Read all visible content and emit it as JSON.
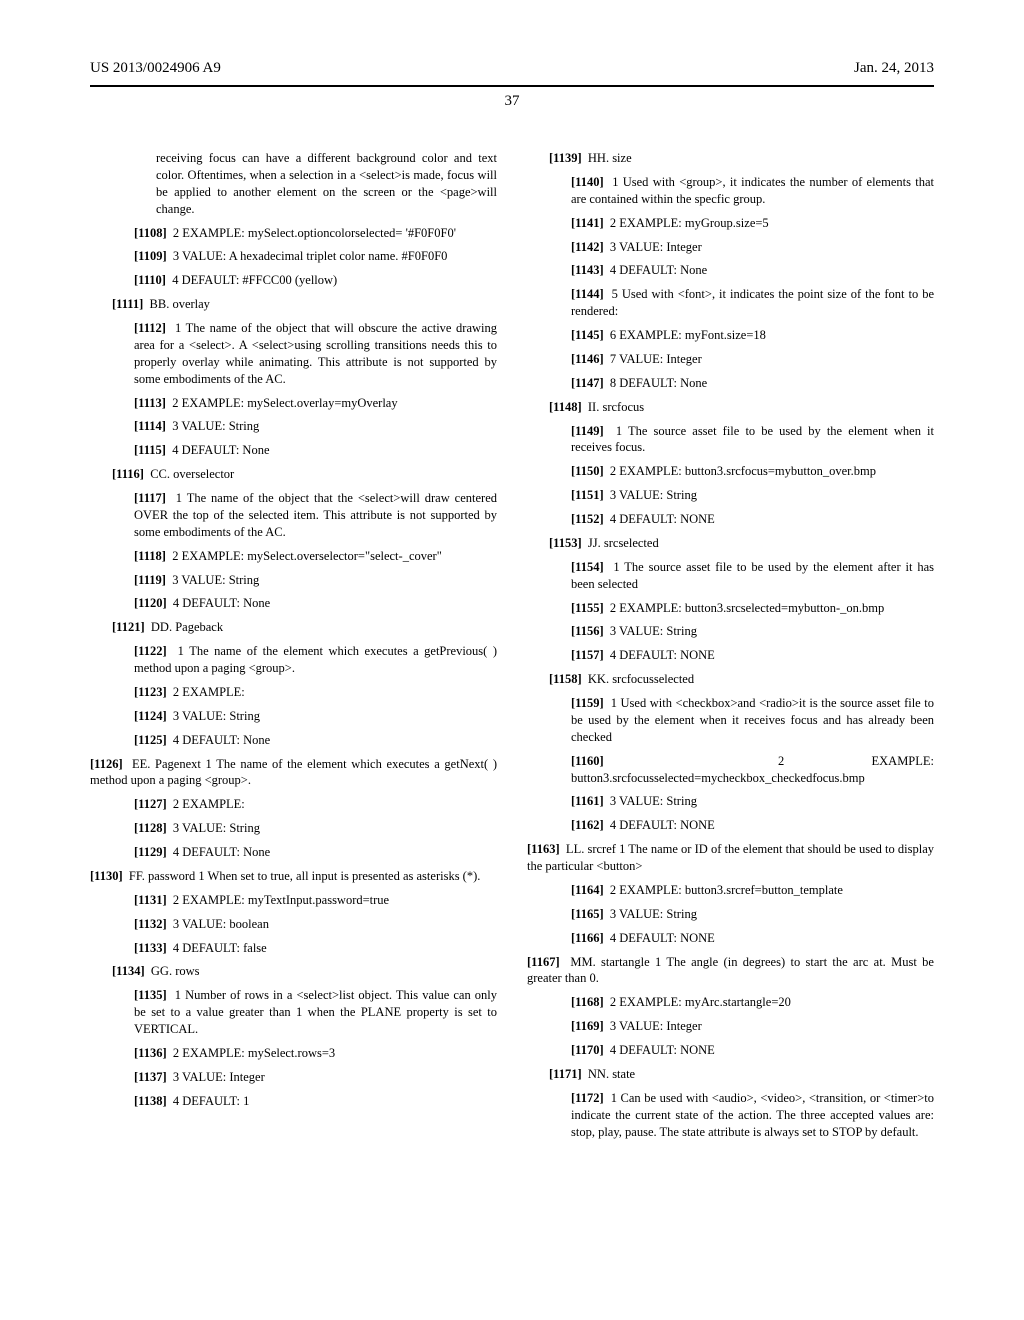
{
  "header": {
    "left": "US 2013/0024906 A9",
    "right": "Jan. 24, 2013"
  },
  "pageNumber": "37",
  "leftColumn": [
    {
      "indent": 3,
      "text": "receiving focus can have a different background color and text color. Oftentimes, when a selection in a <select>is made, focus will be applied to another element on the screen or the <page>will change."
    },
    {
      "indent": 2,
      "num": "[1108]",
      "text": "2 EXAMPLE: mySelect.optioncolorselected= '#F0F0F0'"
    },
    {
      "indent": 2,
      "num": "[1109]",
      "text": "3 VALUE: A hexadecimal triplet color name. #F0F0F0"
    },
    {
      "indent": 2,
      "num": "[1110]",
      "text": "4 DEFAULT: #FFCC00 (yellow)"
    },
    {
      "indent": 1,
      "num": "[1111]",
      "text": "BB. overlay"
    },
    {
      "indent": 2,
      "num": "[1112]",
      "text": "1 The name of the object that will obscure the active drawing area for a <select>. A <select>using scrolling transitions needs this to properly overlay while animating. This attribute is not supported by some embodiments of the AC."
    },
    {
      "indent": 2,
      "num": "[1113]",
      "text": "2 EXAMPLE: mySelect.overlay=myOverlay"
    },
    {
      "indent": 2,
      "num": "[1114]",
      "text": "3 VALUE: String"
    },
    {
      "indent": 2,
      "num": "[1115]",
      "text": "4 DEFAULT: None"
    },
    {
      "indent": 1,
      "num": "[1116]",
      "text": "CC. overselector"
    },
    {
      "indent": 2,
      "num": "[1117]",
      "text": "1 The name of the object that the <select>will draw centered OVER the top of the selected item. This attribute is not supported by some embodiments of the AC."
    },
    {
      "indent": 2,
      "num": "[1118]",
      "text": "2 EXAMPLE: mySelect.overselector=\"select-_cover\""
    },
    {
      "indent": 2,
      "num": "[1119]",
      "text": "3 VALUE: String"
    },
    {
      "indent": 2,
      "num": "[1120]",
      "text": "4 DEFAULT: None"
    },
    {
      "indent": 1,
      "num": "[1121]",
      "text": "DD. Pageback"
    },
    {
      "indent": 2,
      "num": "[1122]",
      "text": "1 The name of the element which executes a getPrevious( ) method upon a paging <group>."
    },
    {
      "indent": 2,
      "num": "[1123]",
      "text": "2 EXAMPLE:"
    },
    {
      "indent": 2,
      "num": "[1124]",
      "text": "3 VALUE: String"
    },
    {
      "indent": 2,
      "num": "[1125]",
      "text": "4 DEFAULT: None"
    },
    {
      "indent": 0,
      "num": "[1126]",
      "text": "EE. Pagenext 1 The name of the element which executes a getNext( ) method upon a paging <group>."
    },
    {
      "indent": 2,
      "num": "[1127]",
      "text": "2 EXAMPLE:"
    },
    {
      "indent": 2,
      "num": "[1128]",
      "text": "3 VALUE: String"
    },
    {
      "indent": 2,
      "num": "[1129]",
      "text": "4 DEFAULT: None"
    },
    {
      "indent": 0,
      "num": "[1130]",
      "text": "FF. password 1 When set to true, all input is presented as asterisks (*)."
    },
    {
      "indent": 2,
      "num": "[1131]",
      "text": "2 EXAMPLE: myTextInput.password=true"
    },
    {
      "indent": 2,
      "num": "[1132]",
      "text": "3 VALUE: boolean"
    },
    {
      "indent": 2,
      "num": "[1133]",
      "text": "4 DEFAULT: false"
    },
    {
      "indent": 1,
      "num": "[1134]",
      "text": "GG. rows"
    },
    {
      "indent": 2,
      "num": "[1135]",
      "text": "1 Number of rows in a <select>list object. This value can only be set to a value greater than 1 when the PLANE property is set to VERTICAL."
    },
    {
      "indent": 2,
      "num": "[1136]",
      "text": "2 EXAMPLE: mySelect.rows=3"
    },
    {
      "indent": 2,
      "num": "[1137]",
      "text": "3 VALUE: Integer"
    },
    {
      "indent": 2,
      "num": "[1138]",
      "text": "4 DEFAULT: 1"
    }
  ],
  "rightColumn": [
    {
      "indent": 1,
      "num": "[1139]",
      "text": "HH. size"
    },
    {
      "indent": 2,
      "num": "[1140]",
      "text": "1 Used with <group>, it indicates the number of elements that are contained within the specfic group."
    },
    {
      "indent": 2,
      "num": "[1141]",
      "text": "2 EXAMPLE: myGroup.size=5"
    },
    {
      "indent": 2,
      "num": "[1142]",
      "text": "3 VALUE: Integer"
    },
    {
      "indent": 2,
      "num": "[1143]",
      "text": "4 DEFAULT: None"
    },
    {
      "indent": 2,
      "num": "[1144]",
      "text": "5 Used with <font>, it indicates the point size of the font to be rendered:"
    },
    {
      "indent": 2,
      "num": "[1145]",
      "text": "6 EXAMPLE: myFont.size=18"
    },
    {
      "indent": 2,
      "num": "[1146]",
      "text": "7 VALUE: Integer"
    },
    {
      "indent": 2,
      "num": "[1147]",
      "text": "8 DEFAULT: None"
    },
    {
      "indent": 1,
      "num": "[1148]",
      "text": "II. srcfocus"
    },
    {
      "indent": 2,
      "num": "[1149]",
      "text": "1 The source asset file to be used by the element when it receives focus."
    },
    {
      "indent": 2,
      "num": "[1150]",
      "text": "2 EXAMPLE: button3.srcfocus=mybutton_over.bmp"
    },
    {
      "indent": 2,
      "num": "[1151]",
      "text": "3 VALUE: String"
    },
    {
      "indent": 2,
      "num": "[1152]",
      "text": "4 DEFAULT: NONE"
    },
    {
      "indent": 1,
      "num": "[1153]",
      "text": "JJ. srcselected"
    },
    {
      "indent": 2,
      "num": "[1154]",
      "text": "1 The source asset file to be used by the element after it has been selected"
    },
    {
      "indent": 2,
      "num": "[1155]",
      "text": "2 EXAMPLE: button3.srcselected=mybutton-_on.bmp"
    },
    {
      "indent": 2,
      "num": "[1156]",
      "text": "3 VALUE: String"
    },
    {
      "indent": 2,
      "num": "[1157]",
      "text": "4 DEFAULT: NONE"
    },
    {
      "indent": 1,
      "num": "[1158]",
      "text": "KK. srcfocusselected"
    },
    {
      "indent": 2,
      "num": "[1159]",
      "text": "1 Used with <checkbox>and <radio>it is the source asset file to be used by the element when it receives focus and has already been checked"
    },
    {
      "indent": 2,
      "num": "[1160]",
      "text": "2 EXAMPLE: button3.srcfocusselected=mycheckbox_checkedfocus.bmp"
    },
    {
      "indent": 2,
      "num": "[1161]",
      "text": "3 VALUE: String"
    },
    {
      "indent": 2,
      "num": "[1162]",
      "text": "4 DEFAULT: NONE"
    },
    {
      "indent": 0,
      "num": "[1163]",
      "text": "LL. srcref 1 The name or ID of the element that should be used to display the particular <button>"
    },
    {
      "indent": 2,
      "num": "[1164]",
      "text": "2 EXAMPLE: button3.srcref=button_template"
    },
    {
      "indent": 2,
      "num": "[1165]",
      "text": "3 VALUE: String"
    },
    {
      "indent": 2,
      "num": "[1166]",
      "text": "4 DEFAULT: NONE"
    },
    {
      "indent": 0,
      "num": "[1167]",
      "text": "MM. startangle 1 The angle (in degrees) to start the arc at. Must be greater than 0."
    },
    {
      "indent": 2,
      "num": "[1168]",
      "text": "2 EXAMPLE: myArc.startangle=20"
    },
    {
      "indent": 2,
      "num": "[1169]",
      "text": "3 VALUE: Integer"
    },
    {
      "indent": 2,
      "num": "[1170]",
      "text": "4 DEFAULT: NONE"
    },
    {
      "indent": 1,
      "num": "[1171]",
      "text": "NN. state"
    },
    {
      "indent": 2,
      "num": "[1172]",
      "text": "1 Can be used with <audio>, <video>, <transition, or <timer>to indicate the current state of the action. The three accepted values are: stop, play, pause. The state attribute is always set to STOP by default."
    }
  ]
}
